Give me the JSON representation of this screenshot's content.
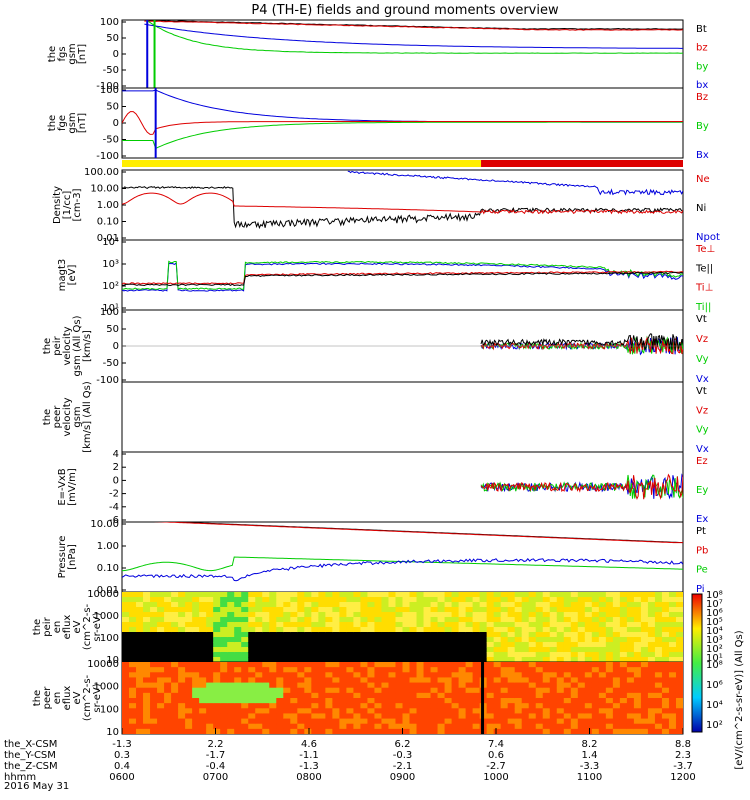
{
  "title": "P4 (TH-E) fields and ground moments overview",
  "footer": "2016 May 31",
  "colors": {
    "black": "#000000",
    "red": "#dd0000",
    "green": "#00cc00",
    "blue": "#0000dd",
    "yellow": "#ffee00"
  },
  "status_bar": {
    "segments": [
      {
        "x0": 0,
        "x1": 0.64,
        "color": "yellow"
      },
      {
        "x0": 0.64,
        "x1": 1.0,
        "color": "red"
      }
    ]
  },
  "chart_data": [
    {
      "type": "line",
      "id": "fgs-gsm",
      "ylabel": [
        "the",
        "fgs",
        "gsm",
        "[nT]"
      ],
      "ylim": [
        -100,
        100
      ],
      "log": false,
      "yticks": [
        "100",
        "50",
        "0",
        "-50",
        "-100"
      ],
      "series": [
        {
          "name": "Bt",
          "color": "black"
        },
        {
          "name": "bz",
          "color": "red"
        },
        {
          "name": "by",
          "color": "green"
        },
        {
          "name": "bx",
          "color": "blue"
        }
      ]
    },
    {
      "type": "line",
      "id": "fge-gsm",
      "ylabel": [
        "the",
        "fge",
        "gsm",
        "[nT]"
      ],
      "ylim": [
        -120,
        120
      ],
      "log": false,
      "yticks": [
        "100",
        "50",
        "0",
        "-50",
        "-100"
      ],
      "series": [
        {
          "name": "Bz",
          "color": "red"
        },
        {
          "name": "By",
          "color": "green"
        },
        {
          "name": "Bx",
          "color": "blue"
        }
      ]
    },
    {
      "type": "line",
      "id": "density",
      "ylabel": [
        "Density",
        "[1/cc]",
        "[cm-3]"
      ],
      "ylim": [
        0.01,
        300
      ],
      "log": true,
      "yticks": [
        "100.00",
        "10.00",
        "1.00",
        "0.10",
        "0.01"
      ],
      "series": [
        {
          "name": "Ne",
          "color": "red"
        },
        {
          "name": "Ni",
          "color": "black"
        },
        {
          "name": "Npot",
          "color": "blue"
        }
      ]
    },
    {
      "type": "line",
      "id": "temperature",
      "ylabel": [
        "magt3",
        "[eV]"
      ],
      "ylim": [
        10,
        100000
      ],
      "log": true,
      "yticks": [
        "10⁴",
        "10³",
        "10²",
        "10¹"
      ],
      "series": [
        {
          "name": "Te⊥",
          "color": "red"
        },
        {
          "name": "Te||",
          "color": "black"
        },
        {
          "name": "Ti⊥",
          "color": "red"
        },
        {
          "name": "Ti||",
          "color": "green"
        }
      ]
    },
    {
      "type": "line",
      "id": "peir-velocity",
      "ylabel": [
        "the",
        "peir",
        "velocity",
        "gsm (All Qs)",
        "[km/s]"
      ],
      "ylim": [
        -100,
        100
      ],
      "log": false,
      "yticks": [
        "100",
        "50",
        "0",
        "-50",
        "-100"
      ],
      "series": [
        {
          "name": "Vt",
          "color": "black"
        },
        {
          "name": "Vz",
          "color": "red"
        },
        {
          "name": "Vy",
          "color": "green"
        },
        {
          "name": "Vx",
          "color": "blue"
        }
      ]
    },
    {
      "type": "line",
      "id": "peer-velocity",
      "ylabel": [
        "the",
        "peer",
        "velocity",
        "gsm",
        "[km/s] (All Qs)"
      ],
      "ylim": [
        -100,
        100
      ],
      "log": false,
      "yticks": [],
      "series": [
        {
          "name": "Vt",
          "color": "black"
        },
        {
          "name": "Vz",
          "color": "red"
        },
        {
          "name": "Vy",
          "color": "green"
        },
        {
          "name": "Vx",
          "color": "blue"
        }
      ]
    },
    {
      "type": "line",
      "id": "efield",
      "ylabel": [
        "E=-VxB",
        "[mV/m]"
      ],
      "ylim": [
        -6,
        6
      ],
      "log": false,
      "yticks": [
        "4",
        "2",
        "0",
        "-2",
        "-4",
        "-6"
      ],
      "series": [
        {
          "name": "Ez",
          "color": "red"
        },
        {
          "name": "Ey",
          "color": "green"
        },
        {
          "name": "Ex",
          "color": "blue"
        }
      ]
    },
    {
      "type": "line",
      "id": "pressure",
      "ylabel": [
        "Pressure",
        "[nPa]"
      ],
      "ylim": [
        0.003,
        30
      ],
      "log": true,
      "yticks": [
        "10.00",
        "1.00",
        "0.10",
        "0.01"
      ],
      "series": [
        {
          "name": "Pt",
          "color": "black"
        },
        {
          "name": "Pb",
          "color": "red"
        },
        {
          "name": "Pe",
          "color": "green"
        },
        {
          "name": "Pi",
          "color": "blue"
        }
      ]
    },
    {
      "type": "heatmap",
      "id": "peir-en-eflux",
      "ylabel": [
        "the",
        "peir",
        "en",
        "eflux",
        "eV",
        "(cm^2-s-",
        "sr-eV)"
      ],
      "log": true,
      "yticks": [
        "10000",
        "1000",
        "100",
        "10"
      ]
    },
    {
      "type": "heatmap",
      "id": "peer-en-eflux",
      "ylabel": [
        "the",
        "peer",
        "en",
        "eflux",
        "eV",
        "(cm^2-s-",
        "sr-eV)"
      ],
      "log": true,
      "yticks": [
        "10000",
        "1000",
        "100",
        "10"
      ]
    }
  ],
  "colorbar": {
    "label": "[eV/(cm^2-s-sr-eV)] (All Qs)",
    "top_ticks": [
      "10⁸",
      "10⁷",
      "10⁶",
      "10⁵",
      "10⁴",
      "10³",
      "10²",
      "10¹"
    ],
    "bottom_ticks": [
      "10⁸",
      "10⁶",
      "10⁴",
      "10²"
    ]
  },
  "xaxis": {
    "row_labels": [
      "the_X-CSM",
      "the_Y-CSM",
      "the_Z-CSM",
      "hhmm"
    ],
    "columns": [
      [
        "-1.3",
        "0.3",
        "0.4",
        "0600"
      ],
      [
        "2.2",
        "-1.7",
        "-0.4",
        "0700"
      ],
      [
        "4.6",
        "-1.1",
        "-1.3",
        "0800"
      ],
      [
        "6.2",
        "-0.3",
        "-2.1",
        "0900"
      ],
      [
        "7.4",
        "0.6",
        "-2.7",
        "1000"
      ],
      [
        "8.2",
        "1.4",
        "-3.3",
        "1100"
      ],
      [
        "8.8",
        "2.3",
        "-3.7",
        "1200"
      ]
    ]
  }
}
